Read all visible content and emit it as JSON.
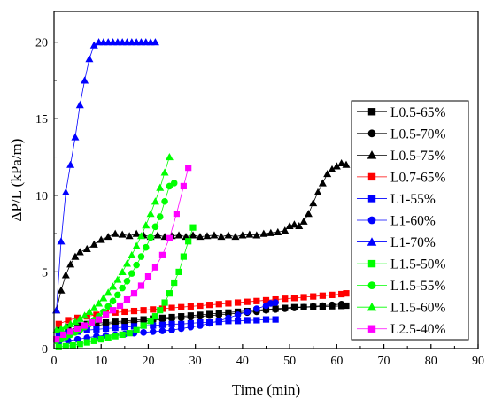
{
  "chart_data": {
    "type": "scatter",
    "title": "",
    "xlabel": "Time (min)",
    "ylabel": "ΔP/L (kPa/m)",
    "xlim": [
      0,
      90
    ],
    "ylim": [
      0,
      22
    ],
    "xticks": [
      0,
      10,
      20,
      30,
      40,
      50,
      60,
      70,
      80,
      90
    ],
    "yticks": [
      0,
      5,
      10,
      15,
      20
    ],
    "x_tick_labels": [
      "0",
      "10",
      "20",
      "30",
      "40",
      "50",
      "60",
      "70",
      "80",
      "90"
    ],
    "y_tick_labels": [
      "0",
      "5",
      "10",
      "15",
      "20"
    ],
    "grid": false,
    "legend_position": "right",
    "series": [
      {
        "name": "L0.5-65%",
        "marker": "square",
        "color": "#000000",
        "x": [
          1,
          3,
          5,
          7,
          9,
          11,
          13,
          15,
          17,
          19,
          21,
          23,
          25,
          27,
          29,
          31,
          33,
          35,
          37,
          39,
          41,
          43,
          45,
          47,
          49,
          51,
          53,
          55,
          57,
          59,
          61,
          62
        ],
        "y": [
          1.2,
          1.4,
          1.5,
          1.6,
          1.65,
          1.7,
          1.75,
          1.8,
          1.85,
          1.9,
          1.95,
          2.0,
          2.05,
          2.1,
          2.15,
          2.2,
          2.25,
          2.3,
          2.35,
          2.4,
          2.45,
          2.5,
          2.55,
          2.6,
          2.65,
          2.7,
          2.7,
          2.72,
          2.74,
          2.76,
          2.78,
          2.8
        ]
      },
      {
        "name": "L0.5-70%",
        "marker": "circle",
        "color": "#000000",
        "x": [
          1,
          3,
          5,
          7,
          9,
          11,
          13,
          15,
          17,
          19,
          21,
          23,
          25,
          27,
          29,
          31,
          33,
          35,
          37,
          39,
          41,
          43,
          45,
          47,
          49,
          51,
          53,
          55,
          57,
          59,
          61
        ],
        "y": [
          1.0,
          1.2,
          1.35,
          1.45,
          1.5,
          1.6,
          1.65,
          1.7,
          1.75,
          1.8,
          1.85,
          1.9,
          1.95,
          2.0,
          2.05,
          2.1,
          2.15,
          2.2,
          2.25,
          2.3,
          2.35,
          2.4,
          2.5,
          2.55,
          2.6,
          2.65,
          2.7,
          2.75,
          2.8,
          2.85,
          2.9
        ]
      },
      {
        "name": "L0.5-75%",
        "marker": "triangle",
        "color": "#000000",
        "x": [
          0.5,
          1.5,
          2.5,
          3.5,
          4.5,
          5.5,
          7,
          8.5,
          10,
          11.5,
          13,
          14.5,
          16,
          17.5,
          19,
          20.5,
          22,
          23.5,
          25,
          26.5,
          28,
          29.5,
          31,
          32.5,
          34,
          35.5,
          37,
          38.5,
          40,
          41.5,
          43,
          44.5,
          46,
          47.5,
          49,
          50,
          51,
          52,
          53,
          54,
          55,
          56,
          57,
          58,
          59,
          60,
          61,
          62
        ],
        "y": [
          2.5,
          3.8,
          4.8,
          5.5,
          6.0,
          6.3,
          6.5,
          6.8,
          7.1,
          7.3,
          7.5,
          7.45,
          7.35,
          7.5,
          7.4,
          7.3,
          7.4,
          7.3,
          7.35,
          7.4,
          7.3,
          7.4,
          7.3,
          7.35,
          7.4,
          7.3,
          7.4,
          7.3,
          7.4,
          7.45,
          7.4,
          7.5,
          7.55,
          7.6,
          7.7,
          8.0,
          8.1,
          8.0,
          8.3,
          8.8,
          9.5,
          10.2,
          10.8,
          11.4,
          11.7,
          11.9,
          12.1,
          12.0
        ]
      },
      {
        "name": "L0.7-65%",
        "marker": "square",
        "color": "#ff0000",
        "x": [
          1,
          3,
          5,
          7,
          9,
          11,
          13,
          15,
          17,
          19,
          21,
          23,
          25,
          27,
          29,
          31,
          33,
          35,
          37,
          39,
          41,
          43,
          45,
          47,
          49,
          51,
          53,
          55,
          57,
          59,
          61,
          62
        ],
        "y": [
          1.6,
          1.85,
          2.0,
          2.1,
          2.2,
          2.3,
          2.35,
          2.4,
          2.45,
          2.5,
          2.55,
          2.6,
          2.65,
          2.7,
          2.75,
          2.8,
          2.85,
          2.9,
          2.95,
          3.0,
          3.05,
          3.1,
          3.15,
          3.2,
          3.25,
          3.3,
          3.35,
          3.4,
          3.45,
          3.5,
          3.55,
          3.6
        ]
      },
      {
        "name": "L1-55%",
        "marker": "square",
        "color": "#0000ff",
        "x": [
          1,
          3,
          5,
          7,
          9,
          11,
          13,
          15,
          17,
          19,
          21,
          23,
          25,
          27,
          29,
          31,
          33,
          35,
          37,
          39,
          41,
          43,
          45,
          47
        ],
        "y": [
          0.9,
          1.0,
          1.1,
          1.2,
          1.25,
          1.3,
          1.35,
          1.4,
          1.45,
          1.5,
          1.5,
          1.55,
          1.6,
          1.6,
          1.65,
          1.7,
          1.7,
          1.75,
          1.8,
          1.8,
          1.85,
          1.85,
          1.9,
          1.9
        ]
      },
      {
        "name": "L1-60%",
        "marker": "circle",
        "color": "#0000ff",
        "x": [
          1,
          3,
          5,
          7,
          9,
          11,
          13,
          15,
          17,
          19,
          21,
          23,
          25,
          27,
          29,
          31,
          33,
          35,
          37,
          39,
          41,
          43,
          45,
          46,
          47
        ],
        "y": [
          0.4,
          0.5,
          0.6,
          0.7,
          0.8,
          0.85,
          0.9,
          0.95,
          1.0,
          1.05,
          1.1,
          1.15,
          1.2,
          1.3,
          1.4,
          1.5,
          1.65,
          1.8,
          2.0,
          2.2,
          2.4,
          2.6,
          2.8,
          2.95,
          3.0
        ]
      },
      {
        "name": "L1-70%",
        "marker": "triangle",
        "color": "#0000ff",
        "x": [
          0.5,
          1.5,
          2.5,
          3.5,
          4.5,
          5.5,
          6.5,
          7.5,
          8.5,
          9.5,
          10.5,
          11.5,
          12.5,
          13.5,
          14.5,
          15.5,
          16.5,
          17.5,
          18.5,
          19.5,
          20.5,
          21.5
        ],
        "y": [
          2.5,
          7.0,
          10.2,
          12.0,
          13.8,
          15.9,
          17.5,
          18.9,
          19.8,
          20.0,
          20.0,
          20.0,
          20.0,
          20.0,
          20.0,
          20.0,
          20.0,
          20.0,
          20.0,
          20.0,
          20.0,
          20.0
        ]
      },
      {
        "name": "L1.5-50%",
        "marker": "square",
        "color": "#00ff00",
        "x": [
          1,
          2.5,
          4,
          5.5,
          7,
          8.5,
          10,
          11.5,
          13,
          14.5,
          16,
          17.5,
          19,
          20.5,
          21.5,
          22.5,
          23.5,
          24.5,
          25.5,
          26.5,
          27.5,
          28.5,
          29.5
        ],
        "y": [
          0.1,
          0.15,
          0.2,
          0.3,
          0.4,
          0.5,
          0.6,
          0.7,
          0.8,
          0.9,
          1.0,
          1.2,
          1.5,
          1.8,
          2.1,
          2.5,
          3.0,
          3.6,
          4.3,
          5.0,
          6.0,
          7.0,
          7.9
        ]
      },
      {
        "name": "L1.5-55%",
        "marker": "circle",
        "color": "#00ff00",
        "x": [
          0.5,
          1.5,
          2.5,
          3.5,
          4.5,
          5.5,
          6.5,
          7.5,
          8.5,
          9.5,
          10.5,
          11.5,
          12.5,
          13.5,
          14.5,
          15.5,
          16.5,
          17.5,
          18.5,
          19.5,
          20.5,
          21.5,
          22.5,
          23.5,
          24.5,
          25.5
        ],
        "y": [
          0.5,
          0.6,
          0.75,
          0.9,
          1.05,
          1.2,
          1.4,
          1.6,
          1.85,
          2.1,
          2.4,
          2.75,
          3.1,
          3.5,
          3.95,
          4.4,
          4.9,
          5.45,
          6.0,
          6.6,
          7.25,
          7.95,
          8.6,
          9.6,
          10.6,
          10.8
        ]
      },
      {
        "name": "L1.5-60%",
        "marker": "triangle",
        "color": "#00ff00",
        "x": [
          0.5,
          1.5,
          2.5,
          3.5,
          4.5,
          5.5,
          6.5,
          7.5,
          8.5,
          9.5,
          10.5,
          11.5,
          12.5,
          13.5,
          14.5,
          15.5,
          16.5,
          17.5,
          18.5,
          19.5,
          20.5,
          21.5,
          22.5,
          23.5,
          24.5
        ],
        "y": [
          1.2,
          1.3,
          1.45,
          1.6,
          1.75,
          1.95,
          2.15,
          2.4,
          2.65,
          2.95,
          3.3,
          3.65,
          4.05,
          4.5,
          5.0,
          5.55,
          6.1,
          6.7,
          7.35,
          8.05,
          8.8,
          9.6,
          10.5,
          11.5,
          12.5
        ]
      },
      {
        "name": "L2.5-40%",
        "marker": "square",
        "color": "#ff00ff",
        "x": [
          0.5,
          2,
          3.5,
          5,
          6.5,
          8,
          9.5,
          11,
          12.5,
          14,
          15.5,
          17,
          18.5,
          20,
          21.5,
          23,
          24.5,
          26,
          27.5,
          28.5
        ],
        "y": [
          0.6,
          0.9,
          1.1,
          1.3,
          1.5,
          1.7,
          1.9,
          2.2,
          2.5,
          2.8,
          3.2,
          3.6,
          4.1,
          4.7,
          5.3,
          6.1,
          7.2,
          8.8,
          10.6,
          11.8
        ]
      }
    ]
  }
}
